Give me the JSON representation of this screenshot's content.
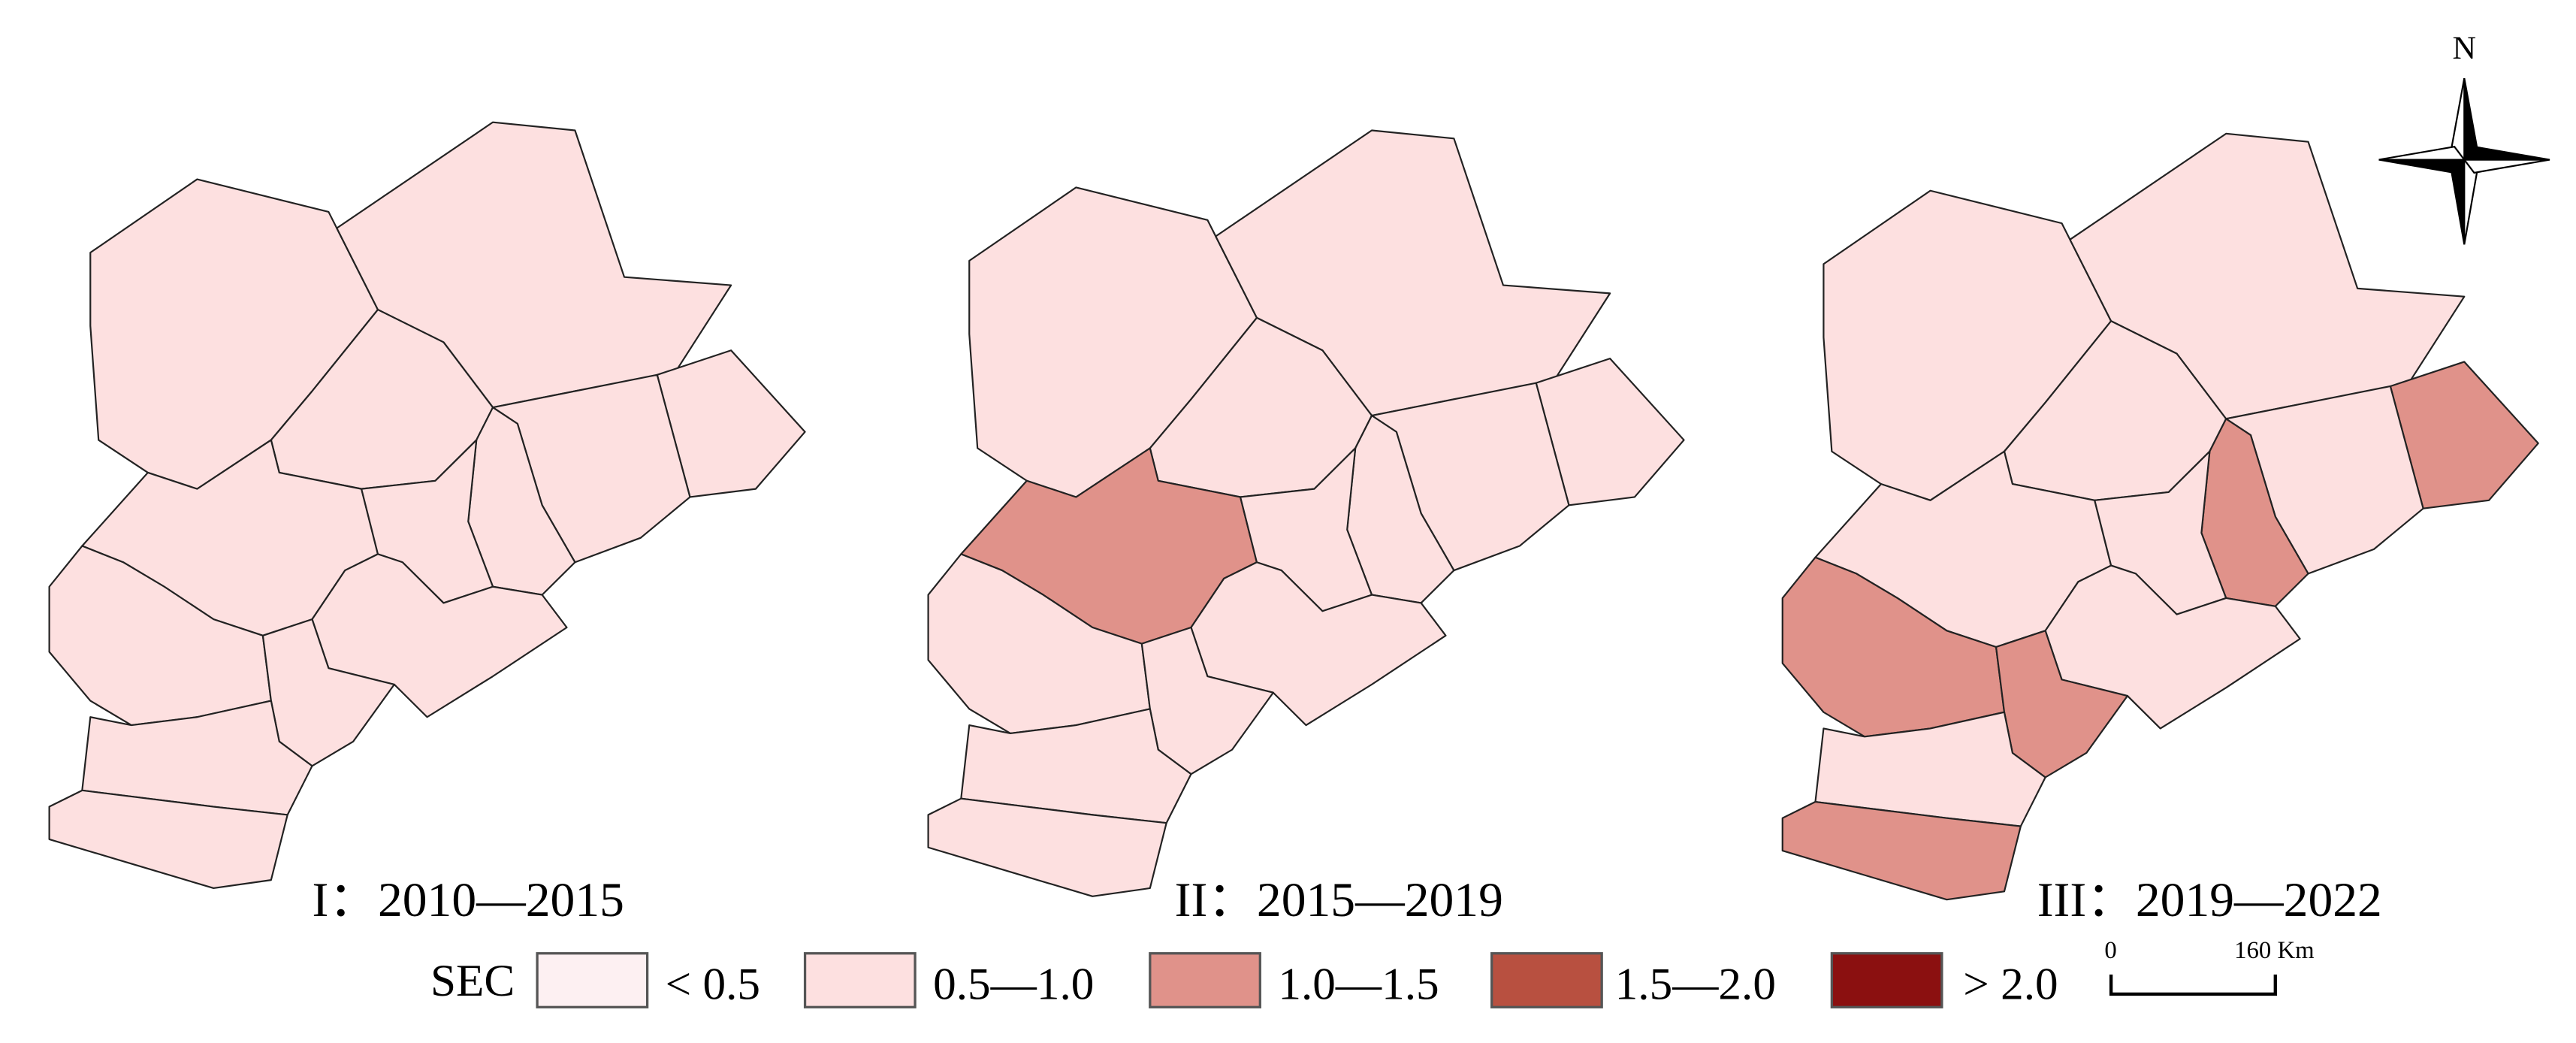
{
  "north": "N",
  "panels": [
    {
      "title": "I：2010—2015"
    },
    {
      "title": "II：2015—2019"
    },
    {
      "title": "III：2019—2022"
    }
  ],
  "legend": {
    "title": "SEC",
    "items": [
      {
        "label": "< 0.5",
        "color": "#fdf0f2"
      },
      {
        "label": "0.5—1.0",
        "color": "#fde0e0"
      },
      {
        "label": "1.0—1.5",
        "color": "#e0928a"
      },
      {
        "label": "1.5—2.0",
        "color": "#b85040"
      },
      {
        "label": "> 2.0",
        "color": "#8b1010"
      }
    ]
  },
  "scale_bar": {
    "start": "0",
    "end": "160 Km"
  }
}
